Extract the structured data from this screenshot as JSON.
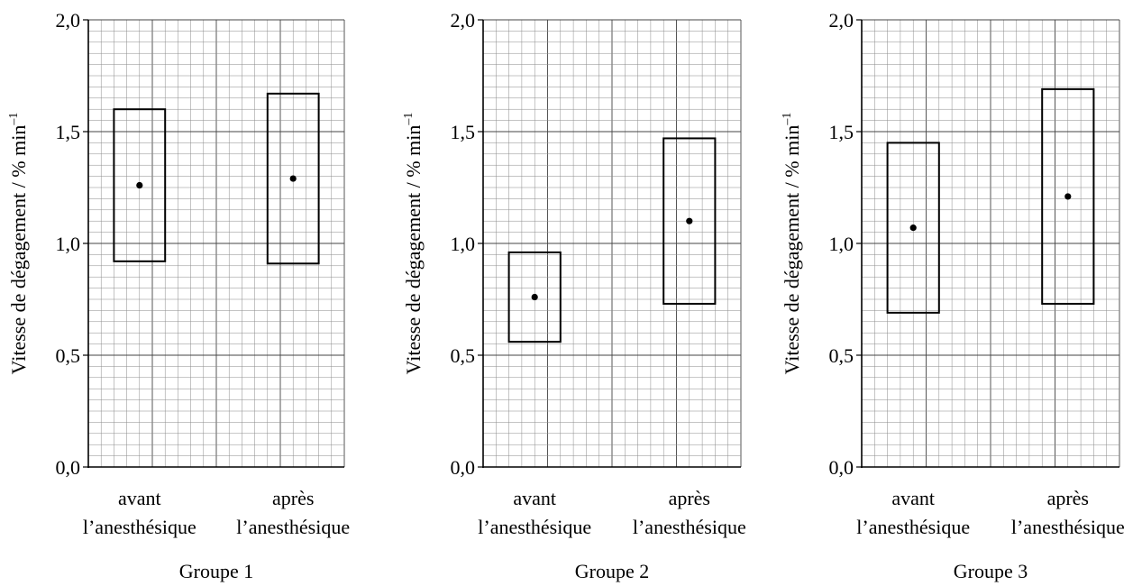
{
  "chart_data": [
    {
      "type": "box",
      "title": "Groupe 1",
      "ylabel": "Vitesse de dégagement / % min",
      "ylabel_superscript": "–1",
      "ylim": [
        0,
        2.0
      ],
      "y_ticks": [
        "0,0",
        "0,5",
        "1,0",
        "1,5",
        "2,0"
      ],
      "y_tick_values": [
        0,
        0.5,
        1.0,
        1.5,
        2.0
      ],
      "categories": [
        {
          "line1": "avant",
          "line2": "l’anesthésique"
        },
        {
          "line1": "après",
          "line2": "l’anesthésique"
        }
      ],
      "boxes": [
        {
          "low": 0.92,
          "high": 1.6,
          "mean": 1.26
        },
        {
          "low": 0.91,
          "high": 1.67,
          "mean": 1.29
        }
      ],
      "grid": true
    },
    {
      "type": "box",
      "title": "Groupe 2",
      "ylabel": "Vitesse de dégagement / % min",
      "ylabel_superscript": "–1",
      "ylim": [
        0,
        2.0
      ],
      "y_ticks": [
        "0,0",
        "0,5",
        "1,0",
        "1,5",
        "2,0"
      ],
      "y_tick_values": [
        0,
        0.5,
        1.0,
        1.5,
        2.0
      ],
      "categories": [
        {
          "line1": "avant",
          "line2": "l’anesthésique"
        },
        {
          "line1": "après",
          "line2": "l’anesthésique"
        }
      ],
      "boxes": [
        {
          "low": 0.56,
          "high": 0.96,
          "mean": 0.76
        },
        {
          "low": 0.73,
          "high": 1.47,
          "mean": 1.1
        }
      ],
      "grid": true
    },
    {
      "type": "box",
      "title": "Groupe 3",
      "ylabel": "Vitesse de dégagement / % min",
      "ylabel_superscript": "–1",
      "ylim": [
        0,
        2.0
      ],
      "y_ticks": [
        "0,0",
        "0,5",
        "1,0",
        "1,5",
        "2,0"
      ],
      "y_tick_values": [
        0,
        0.5,
        1.0,
        1.5,
        2.0
      ],
      "categories": [
        {
          "line1": "avant",
          "line2": "l’anesthésique"
        },
        {
          "line1": "après",
          "line2": "l’anesthésique"
        }
      ],
      "boxes": [
        {
          "low": 0.69,
          "high": 1.45,
          "mean": 1.07
        },
        {
          "low": 0.73,
          "high": 1.69,
          "mean": 1.21
        }
      ],
      "grid": true
    }
  ]
}
